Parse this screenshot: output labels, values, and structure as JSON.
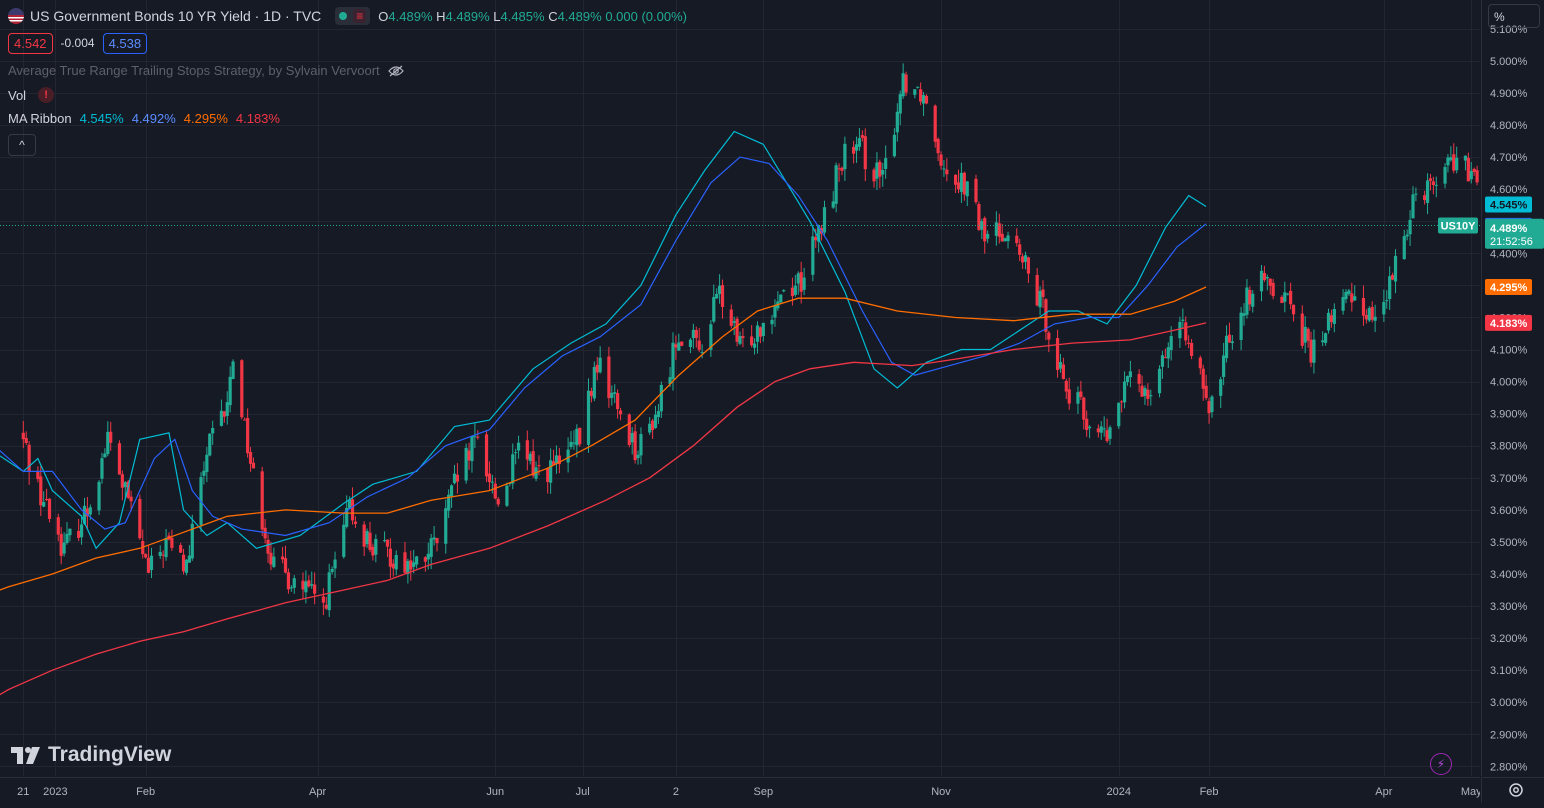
{
  "header": {
    "title": "US Government Bonds 10 YR Yield · 1D · TVC",
    "ohlc": {
      "o_label": "O",
      "o": "4.489%",
      "h_label": "H",
      "h": "4.489%",
      "l_label": "L",
      "l": "4.485%",
      "c_label": "C",
      "c": "4.489%",
      "change": "0.000 (0.00%)"
    },
    "bid": "4.542",
    "spread": "-0.004",
    "ask": "4.538",
    "strategy": "Average True Range Trailing Stops Strategy, by Sylvain Vervoort",
    "vol_label": "Vol",
    "ma_label": "MA Ribbon",
    "ma_values": [
      "4.545%",
      "4.492%",
      "4.295%",
      "4.183%"
    ],
    "collapse": "^"
  },
  "logo_text": "TradingView",
  "unit_label": "%",
  "colors": {
    "up": "#22ab94",
    "down": "#f23645",
    "ma1": "#00bcd4",
    "ma2": "#2962ff",
    "ma3": "#ff6d00",
    "ma4": "#f23645",
    "grid": "#232632",
    "bg": "#161a25"
  },
  "chart_data": {
    "type": "candlestick",
    "symbol": "US10Y",
    "y_ticks": [
      "2.800%",
      "2.900%",
      "3.000%",
      "3.100%",
      "3.200%",
      "3.300%",
      "3.400%",
      "3.500%",
      "3.600%",
      "3.700%",
      "3.800%",
      "3.900%",
      "4.000%",
      "4.100%",
      "4.200%",
      "4.300%",
      "4.400%",
      "4.500%",
      "4.600%",
      "4.700%",
      "4.800%",
      "4.900%",
      "5.000%",
      "5.100%"
    ],
    "y_tick_values": [
      2.8,
      2.9,
      3.0,
      3.1,
      3.2,
      3.3,
      3.4,
      3.5,
      3.6,
      3.7,
      3.8,
      3.9,
      4.0,
      4.1,
      4.2,
      4.3,
      4.4,
      4.5,
      4.6,
      4.7,
      4.8,
      4.9,
      5.0,
      5.1
    ],
    "ylim": [
      2.77,
      5.19
    ],
    "x_ticks": [
      {
        "label": "21",
        "date": "2022-12-21"
      },
      {
        "label": "2023",
        "date": "2023-01-01"
      },
      {
        "label": "Feb",
        "date": "2023-02-01"
      },
      {
        "label": "Apr",
        "date": "2023-04-01"
      },
      {
        "label": "Jun",
        "date": "2023-06-01"
      },
      {
        "label": "Jul",
        "date": "2023-07-01"
      },
      {
        "label": "2",
        "date": "2023-08-02"
      },
      {
        "label": "Sep",
        "date": "2023-09-01"
      },
      {
        "label": "Nov",
        "date": "2023-11-01"
      },
      {
        "label": "2024",
        "date": "2024-01-01"
      },
      {
        "label": "Feb",
        "date": "2024-02-01"
      },
      {
        "label": "Apr",
        "date": "2024-04-01"
      },
      {
        "label": "May",
        "date": "2024-05-01"
      }
    ],
    "close_path": [
      [
        "2022-12-20",
        3.84
      ],
      [
        "2022-12-27",
        3.65
      ],
      [
        "2023-01-04",
        3.48
      ],
      [
        "2023-01-12",
        3.6
      ],
      [
        "2023-01-19",
        3.82
      ],
      [
        "2023-01-26",
        3.63
      ],
      [
        "2023-02-02",
        3.4
      ],
      [
        "2023-02-08",
        3.5
      ],
      [
        "2023-02-15",
        3.42
      ],
      [
        "2023-02-22",
        3.78
      ],
      [
        "2023-03-01",
        3.92
      ],
      [
        "2023-03-03",
        4.08
      ],
      [
        "2023-03-10",
        3.7
      ],
      [
        "2023-03-17",
        3.42
      ],
      [
        "2023-03-24",
        3.38
      ],
      [
        "2023-04-03",
        3.3
      ],
      [
        "2023-04-12",
        3.6
      ],
      [
        "2023-04-20",
        3.48
      ],
      [
        "2023-04-28",
        3.45
      ],
      [
        "2023-05-05",
        3.42
      ],
      [
        "2023-05-12",
        3.5
      ],
      [
        "2023-05-19",
        3.7
      ],
      [
        "2023-05-26",
        3.82
      ],
      [
        "2023-06-02",
        3.62
      ],
      [
        "2023-06-09",
        3.78
      ],
      [
        "2023-06-16",
        3.72
      ],
      [
        "2023-06-23",
        3.74
      ],
      [
        "2023-06-30",
        3.82
      ],
      [
        "2023-07-06",
        4.06
      ],
      [
        "2023-07-13",
        3.92
      ],
      [
        "2023-07-20",
        3.78
      ],
      [
        "2023-07-27",
        3.92
      ],
      [
        "2023-08-03",
        4.16
      ],
      [
        "2023-08-10",
        4.1
      ],
      [
        "2023-08-17",
        4.28
      ],
      [
        "2023-08-24",
        4.1
      ],
      [
        "2023-08-31",
        4.18
      ],
      [
        "2023-09-07",
        4.28
      ],
      [
        "2023-09-14",
        4.32
      ],
      [
        "2023-09-21",
        4.48
      ],
      [
        "2023-09-28",
        4.7
      ],
      [
        "2023-10-05",
        4.72
      ],
      [
        "2023-10-12",
        4.62
      ],
      [
        "2023-10-19",
        4.95
      ],
      [
        "2023-10-26",
        4.9
      ],
      [
        "2023-11-02",
        4.68
      ],
      [
        "2023-11-09",
        4.62
      ],
      [
        "2023-11-16",
        4.45
      ],
      [
        "2023-11-23",
        4.48
      ],
      [
        "2023-11-30",
        4.35
      ],
      [
        "2023-12-07",
        4.2
      ],
      [
        "2023-12-14",
        3.98
      ],
      [
        "2023-12-21",
        3.88
      ],
      [
        "2023-12-28",
        3.82
      ],
      [
        "2024-01-04",
        4.0
      ],
      [
        "2024-01-11",
        3.98
      ],
      [
        "2024-01-18",
        4.12
      ],
      [
        "2024-01-25",
        4.16
      ],
      [
        "2024-02-01",
        3.88
      ],
      [
        "2024-02-08",
        4.15
      ],
      [
        "2024-02-15",
        4.28
      ],
      [
        "2024-02-22",
        4.32
      ],
      [
        "2024-02-29",
        4.25
      ],
      [
        "2024-03-07",
        4.08
      ],
      [
        "2024-03-14",
        4.2
      ],
      [
        "2024-03-21",
        4.28
      ],
      [
        "2024-03-28",
        4.2
      ],
      [
        "2024-04-04",
        4.31
      ],
      [
        "2024-04-11",
        4.58
      ],
      [
        "2024-04-18",
        4.63
      ],
      [
        "2024-04-25",
        4.7
      ],
      [
        "2024-05-01",
        4.64
      ],
      [
        "2024-05-08",
        4.49
      ]
    ],
    "ma_series": [
      {
        "values": [
          [
            -20,
            3.92
          ],
          [
            -10,
            3.78
          ],
          [
            0,
            3.72
          ],
          [
            5,
            3.76
          ],
          [
            10,
            3.66
          ],
          [
            20,
            3.58
          ],
          [
            25,
            3.48
          ],
          [
            33,
            3.56
          ],
          [
            40,
            3.82
          ],
          [
            50,
            3.84
          ],
          [
            55,
            3.6
          ],
          [
            63,
            3.52
          ],
          [
            70,
            3.56
          ],
          [
            80,
            3.48
          ],
          [
            95,
            3.52
          ],
          [
            110,
            3.62
          ],
          [
            120,
            3.68
          ],
          [
            135,
            3.72
          ],
          [
            148,
            3.86
          ],
          [
            160,
            3.88
          ],
          [
            175,
            4.04
          ],
          [
            188,
            4.12
          ],
          [
            200,
            4.18
          ],
          [
            212,
            4.3
          ],
          [
            224,
            4.52
          ],
          [
            234,
            4.66
          ],
          [
            244,
            4.78
          ],
          [
            254,
            4.74
          ],
          [
            262,
            4.62
          ],
          [
            270,
            4.5
          ],
          [
            282,
            4.28
          ],
          [
            292,
            4.04
          ],
          [
            300,
            3.98
          ],
          [
            310,
            4.06
          ],
          [
            322,
            4.1
          ],
          [
            332,
            4.1
          ],
          [
            342,
            4.16
          ],
          [
            352,
            4.22
          ],
          [
            362,
            4.22
          ],
          [
            372,
            4.18
          ],
          [
            382,
            4.3
          ],
          [
            392,
            4.48
          ],
          [
            400,
            4.58
          ],
          [
            406,
            4.546
          ]
        ]
      },
      {
        "values": [
          [
            -20,
            3.88
          ],
          [
            -10,
            3.8
          ],
          [
            0,
            3.72
          ],
          [
            10,
            3.72
          ],
          [
            20,
            3.6
          ],
          [
            28,
            3.54
          ],
          [
            35,
            3.56
          ],
          [
            45,
            3.76
          ],
          [
            52,
            3.82
          ],
          [
            58,
            3.66
          ],
          [
            65,
            3.58
          ],
          [
            75,
            3.54
          ],
          [
            90,
            3.52
          ],
          [
            105,
            3.56
          ],
          [
            118,
            3.64
          ],
          [
            132,
            3.7
          ],
          [
            145,
            3.8
          ],
          [
            160,
            3.85
          ],
          [
            172,
            3.98
          ],
          [
            185,
            4.08
          ],
          [
            198,
            4.14
          ],
          [
            212,
            4.24
          ],
          [
            224,
            4.44
          ],
          [
            236,
            4.62
          ],
          [
            246,
            4.7
          ],
          [
            256,
            4.68
          ],
          [
            266,
            4.58
          ],
          [
            276,
            4.44
          ],
          [
            288,
            4.22
          ],
          [
            298,
            4.06
          ],
          [
            306,
            4.02
          ],
          [
            318,
            4.05
          ],
          [
            330,
            4.08
          ],
          [
            342,
            4.12
          ],
          [
            354,
            4.18
          ],
          [
            366,
            4.2
          ],
          [
            376,
            4.2
          ],
          [
            386,
            4.3
          ],
          [
            396,
            4.42
          ],
          [
            406,
            4.492
          ]
        ]
      },
      {
        "values": [
          [
            -20,
            3.31
          ],
          [
            -5,
            3.36
          ],
          [
            10,
            3.4
          ],
          [
            25,
            3.45
          ],
          [
            40,
            3.48
          ],
          [
            55,
            3.53
          ],
          [
            70,
            3.58
          ],
          [
            90,
            3.6
          ],
          [
            110,
            3.59
          ],
          [
            125,
            3.59
          ],
          [
            140,
            3.63
          ],
          [
            160,
            3.66
          ],
          [
            180,
            3.73
          ],
          [
            195,
            3.8
          ],
          [
            210,
            3.88
          ],
          [
            225,
            4.02
          ],
          [
            240,
            4.14
          ],
          [
            252,
            4.22
          ],
          [
            266,
            4.26
          ],
          [
            282,
            4.26
          ],
          [
            300,
            4.22
          ],
          [
            320,
            4.2
          ],
          [
            340,
            4.19
          ],
          [
            360,
            4.21
          ],
          [
            380,
            4.21
          ],
          [
            395,
            4.25
          ],
          [
            406,
            4.295
          ]
        ]
      },
      {
        "values": [
          [
            -20,
            2.96
          ],
          [
            -5,
            3.04
          ],
          [
            10,
            3.1
          ],
          [
            25,
            3.15
          ],
          [
            40,
            3.19
          ],
          [
            55,
            3.22
          ],
          [
            70,
            3.26
          ],
          [
            90,
            3.31
          ],
          [
            110,
            3.35
          ],
          [
            125,
            3.38
          ],
          [
            140,
            3.43
          ],
          [
            160,
            3.48
          ],
          [
            180,
            3.55
          ],
          [
            200,
            3.63
          ],
          [
            215,
            3.7
          ],
          [
            230,
            3.8
          ],
          [
            245,
            3.92
          ],
          [
            258,
            4.0
          ],
          [
            270,
            4.04
          ],
          [
            285,
            4.06
          ],
          [
            305,
            4.05
          ],
          [
            320,
            4.07
          ],
          [
            340,
            4.1
          ],
          [
            360,
            4.12
          ],
          [
            380,
            4.13
          ],
          [
            395,
            4.16
          ],
          [
            406,
            4.183
          ]
        ]
      }
    ],
    "ma_labels": [
      "4.545%",
      "4.492%",
      "4.295%",
      "4.183%"
    ],
    "last_price": 4.489,
    "last_price_label": "4.489%",
    "countdown": "21:52:56"
  }
}
